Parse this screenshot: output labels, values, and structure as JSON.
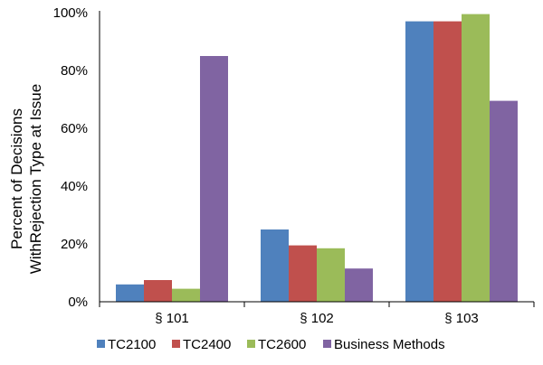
{
  "chart_data": {
    "type": "bar",
    "title": "",
    "xlabel": "",
    "ylabel": [
      "Percent of Decisions",
      "WithRejection Type at Issue"
    ],
    "ylim": [
      0,
      100
    ],
    "yticks": [
      "0%",
      "20%",
      "40%",
      "60%",
      "80%",
      "100%"
    ],
    "categories": [
      "§ 101",
      "§ 102",
      "§ 103"
    ],
    "series": [
      {
        "name": "TC2100",
        "color": "#4F81BD",
        "values": [
          6,
          25,
          97
        ]
      },
      {
        "name": "TC2400",
        "color": "#C0504D",
        "values": [
          7.5,
          19.5,
          97
        ]
      },
      {
        "name": "TC2600",
        "color": "#9BBB59",
        "values": [
          4.5,
          18.5,
          99.5
        ]
      },
      {
        "name": "Business Methods",
        "color": "#8064A2",
        "values": [
          85,
          11.5,
          69.5
        ]
      }
    ],
    "grid": false,
    "legend": "bottom"
  }
}
